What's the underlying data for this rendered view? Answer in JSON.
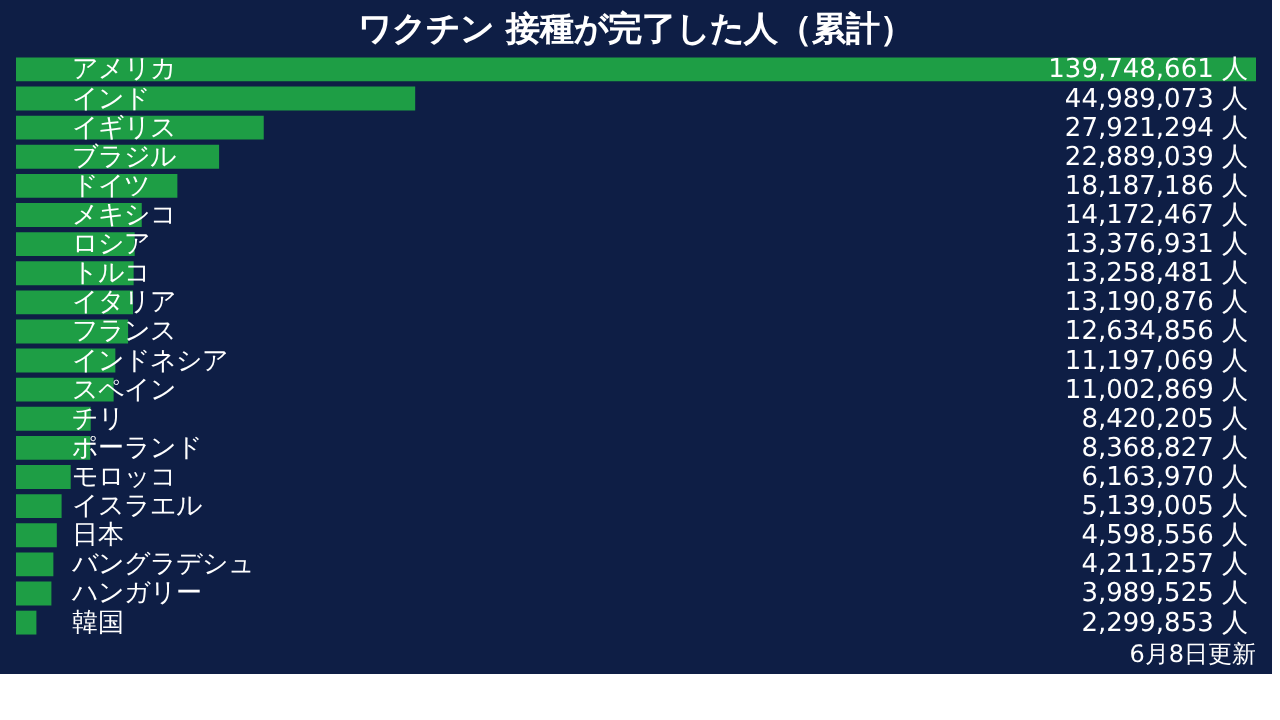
{
  "chart_data": {
    "type": "bar",
    "orientation": "horizontal",
    "title": "ワクチン 接種が完了した人（累計）",
    "categories": [
      "アメリカ",
      "インド",
      "イギリス",
      "ブラジル",
      "ドイツ",
      "メキシコ",
      "ロシア",
      "トルコ",
      "イタリア",
      "フランス",
      "インドネシア",
      "スペイン",
      "チリ",
      "ポーランド",
      "モロッコ",
      "イスラエル",
      "日本",
      "バングラデシュ",
      "ハンガリー",
      "韓国"
    ],
    "values": [
      139748661,
      44989073,
      27921294,
      22889039,
      18187186,
      14172467,
      13376931,
      13258481,
      13190876,
      12634856,
      11197069,
      11002869,
      8420205,
      8368827,
      6163970,
      5139005,
      4598556,
      4211257,
      3989525,
      2299853
    ],
    "value_labels": [
      "139,748,661 人",
      "44,989,073 人",
      "27,921,294 人",
      "22,889,039 人",
      "18,187,186 人",
      "14,172,467 人",
      "13,376,931 人",
      "13,258,481 人",
      "13,190,876 人",
      "12,634,856 人",
      "11,197,069 人",
      "11,002,869 人",
      "8,420,205 人",
      "8,368,827 人",
      "6,163,970 人",
      "5,139,005 人",
      "4,598,556 人",
      "4,211,257 人",
      "3,989,525 人",
      "2,299,853 人"
    ],
    "color": "#1e9e45",
    "annotations": [
      "6月8日更新"
    ]
  }
}
